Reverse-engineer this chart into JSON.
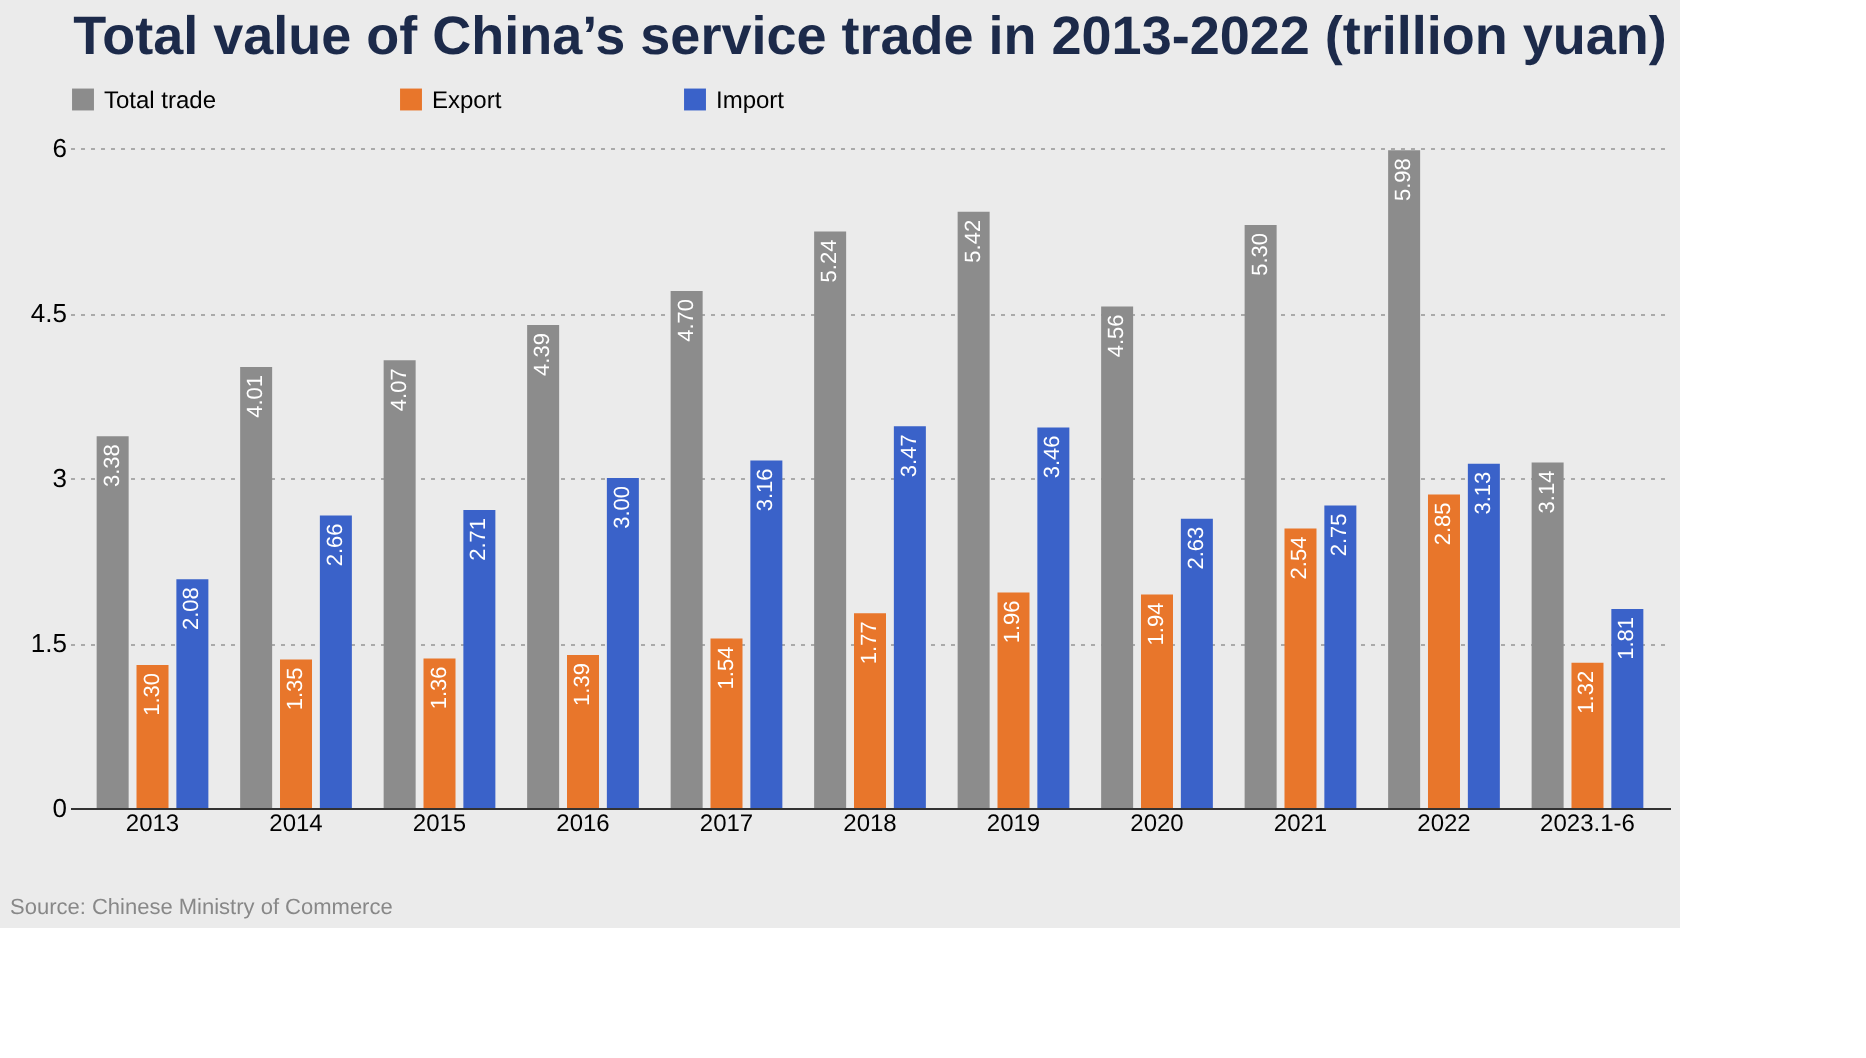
{
  "chart_data": {
    "type": "bar",
    "title": "Total value of China’s service trade in 2013-2022 (trillion yuan)",
    "categories": [
      "2013",
      "2014",
      "2015",
      "2016",
      "2017",
      "2018",
      "2019",
      "2020",
      "2021",
      "2022",
      "2023.1-6"
    ],
    "series": [
      {
        "name": "Total trade",
        "color": "#8c8c8c",
        "values": [
          3.38,
          4.01,
          4.07,
          4.39,
          4.7,
          5.24,
          5.42,
          4.56,
          5.3,
          5.98,
          3.14
        ]
      },
      {
        "name": "Export",
        "color": "#e8762b",
        "values": [
          1.3,
          1.35,
          1.36,
          1.39,
          1.54,
          1.77,
          1.96,
          1.94,
          2.54,
          2.85,
          1.32
        ]
      },
      {
        "name": "Import",
        "color": "#3a62c9",
        "values": [
          2.08,
          2.66,
          2.71,
          3.0,
          3.16,
          3.47,
          3.46,
          2.63,
          2.75,
          3.13,
          1.81
        ]
      }
    ],
    "value_labels": [
      [
        "3.38",
        "4.01",
        "4.07",
        "4.39",
        "4.70",
        "5.24",
        "5.42",
        "4.56",
        "5.30",
        "5.98",
        "3.14"
      ],
      [
        "1.30",
        "1.35",
        "1.36",
        "1.39",
        "1.54",
        "1.77",
        "1.96",
        "1.94",
        "2.54",
        "2.85",
        "1.32"
      ],
      [
        "2.08",
        "2.66",
        "2.71",
        "3.00",
        "3.16",
        "3.47",
        "3.46",
        "2.63",
        "2.75",
        "3.13",
        "1.81"
      ]
    ],
    "ylim": [
      0,
      6
    ],
    "yticks": [
      0,
      1.5,
      3,
      4.5,
      6
    ],
    "grid": "y",
    "legend": "top",
    "annotations": [
      "Source: Chinese Ministry of Commerce"
    ]
  }
}
